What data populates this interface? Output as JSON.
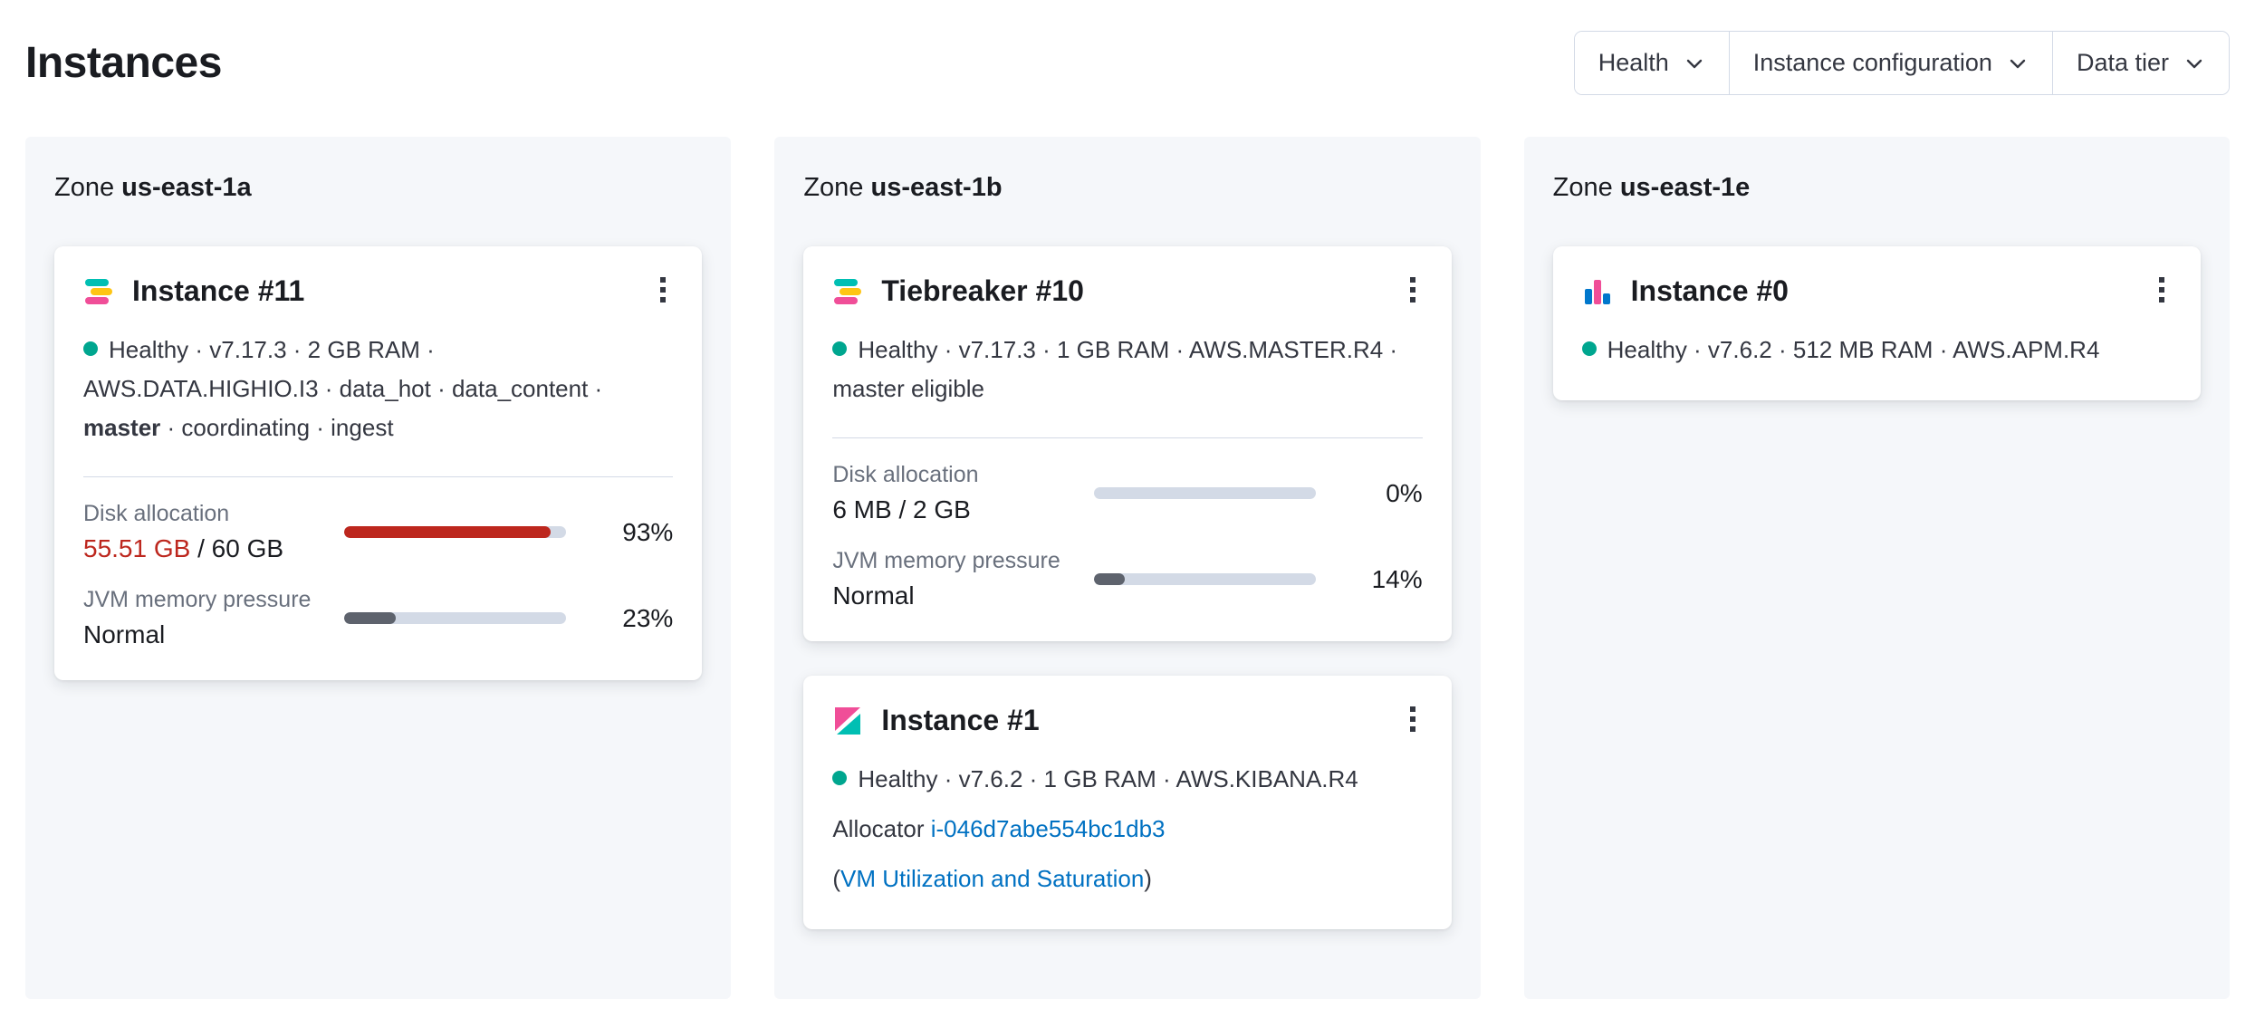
{
  "page": {
    "title": "Instances"
  },
  "filters": {
    "items": [
      {
        "label": "Health"
      },
      {
        "label": "Instance configuration"
      },
      {
        "label": "Data tier"
      }
    ]
  },
  "colors": {
    "danger": "#BD271E",
    "health_dot": "#00A68F",
    "link": "#0071C2",
    "bar_track": "#D3DAE6",
    "bar_dark": "#5E636D",
    "zone_panel": "#F5F7FA"
  },
  "zones": [
    {
      "prefix": "Zone",
      "name": "us-east-1a",
      "cards": [
        {
          "icon": "elasticsearch-logo",
          "title": "Instance #11",
          "status": "Healthy",
          "meta": "· v7.17.3 · 2 GB RAM · AWS.DATA.HIGHIO.I3 · data_hot · data_content ·",
          "meta_bold": "master",
          "meta_tail": "· coordinating · ingest",
          "metrics": {
            "disk": {
              "label": "Disk allocation",
              "value_highlight": "55.51 GB",
              "value_rest": " / 60 GB",
              "percent": 93,
              "percent_label": "93%"
            },
            "jvm": {
              "label": "JVM memory pressure",
              "value": "Normal",
              "percent": 23,
              "percent_label": "23%"
            }
          }
        }
      ]
    },
    {
      "prefix": "Zone",
      "name": "us-east-1b",
      "cards": [
        {
          "icon": "elasticsearch-logo",
          "title": "Tiebreaker #10",
          "status": "Healthy",
          "meta": "· v7.17.3 · 1 GB RAM · AWS.MASTER.R4 · master eligible",
          "metrics": {
            "disk": {
              "label": "Disk allocation",
              "value": "6 MB / 2 GB",
              "percent": 0,
              "percent_label": "0%"
            },
            "jvm": {
              "label": "JVM memory pressure",
              "value": "Normal",
              "percent": 14,
              "percent_label": "14%"
            }
          }
        },
        {
          "icon": "kibana-logo",
          "title": "Instance #1",
          "status": "Healthy",
          "meta": "· v7.6.2 · 1 GB RAM · AWS.KIBANA.R4",
          "allocator": {
            "label": "Allocator",
            "id": "i-046d7abe554bc1db3"
          },
          "vm_link": {
            "open": "(",
            "label": "VM Utilization and Saturation",
            "close": ")"
          }
        }
      ]
    },
    {
      "prefix": "Zone",
      "name": "us-east-1e",
      "cards": [
        {
          "icon": "apm-logo",
          "title": "Instance #0",
          "status": "Healthy",
          "meta": "· v7.6.2 · 512 MB RAM · AWS.APM.R4"
        }
      ]
    }
  ]
}
